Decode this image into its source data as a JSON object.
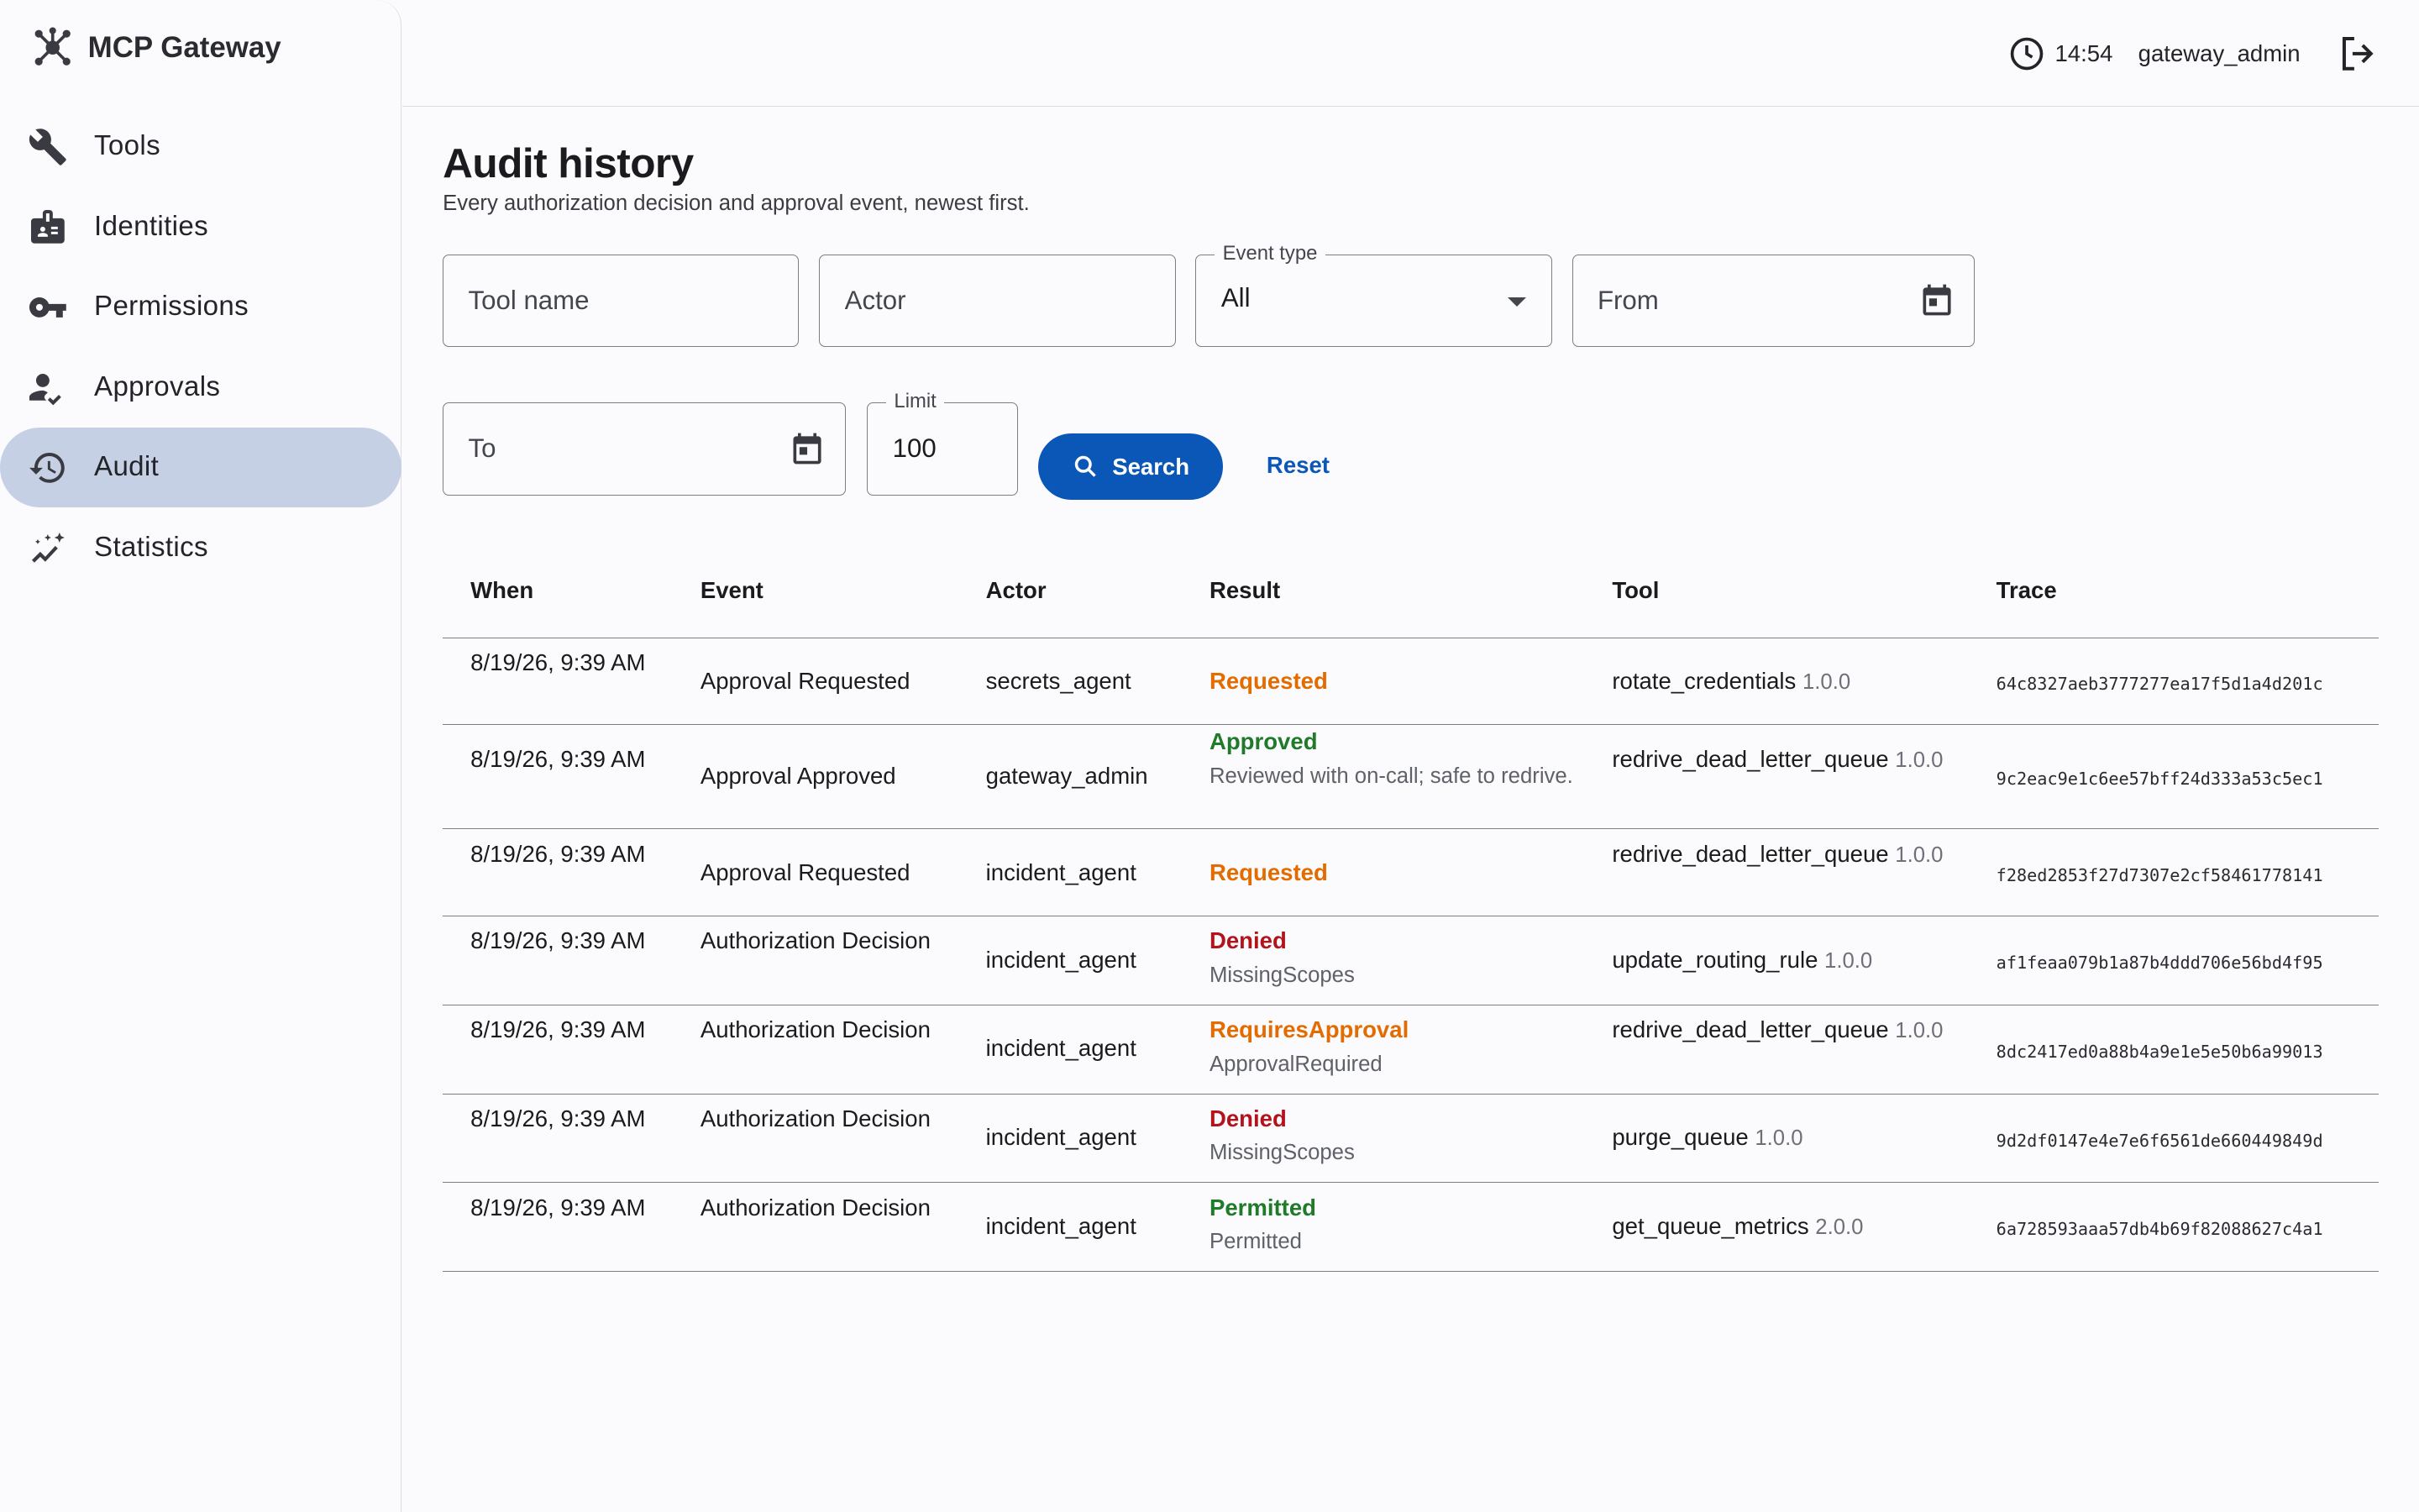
{
  "brand": {
    "name": "MCP Gateway",
    "icon": "hub-icon"
  },
  "nav": [
    {
      "label": "Tools",
      "icon": "wrench-icon",
      "active": false
    },
    {
      "label": "Identities",
      "icon": "badge-icon",
      "active": false
    },
    {
      "label": "Permissions",
      "icon": "key-icon",
      "active": false
    },
    {
      "label": "Approvals",
      "icon": "person-check-icon",
      "active": false
    },
    {
      "label": "Audit",
      "icon": "history-icon",
      "active": true
    },
    {
      "label": "Statistics",
      "icon": "chart-icon",
      "active": false
    }
  ],
  "topbar": {
    "time": "14:54",
    "user": "gateway_admin",
    "logout_icon": "logout-icon"
  },
  "page": {
    "title": "Audit history",
    "subtitle": "Every authorization decision and approval event, newest first."
  },
  "filters": {
    "tool_name_placeholder": "Tool name",
    "actor_placeholder": "Actor",
    "event_type_label": "Event type",
    "event_type_value": "All",
    "from_placeholder": "From",
    "to_placeholder": "To",
    "limit_label": "Limit",
    "limit_value": "100",
    "search_label": "Search",
    "reset_label": "Reset"
  },
  "colors": {
    "accent": "#0b57b8",
    "active_nav": "#c6d0e5",
    "requested": "#e36b00",
    "approved": "#1f7a2a",
    "denied": "#b3141c"
  },
  "table": {
    "headers": {
      "when": "When",
      "event": "Event",
      "actor": "Actor",
      "result": "Result",
      "tool": "Tool",
      "trace": "Trace"
    },
    "rows": [
      {
        "when": "8/19/26, 9:39 AM",
        "event": "Approval Requested",
        "actor": "secrets_agent",
        "status": "Requested",
        "status_color": "orange",
        "detail": "",
        "tool": "rotate_credentials",
        "version": "1.0.0",
        "trace": "64c8327aeb3777277ea17f5d1a4d201c"
      },
      {
        "when": "8/19/26, 9:39 AM",
        "event": "Approval Approved",
        "actor": "gateway_admin",
        "status": "Approved",
        "status_color": "green",
        "detail": "Reviewed with on-call; safe to redrive.",
        "tool": "redrive_dead_letter_queue",
        "version": "1.0.0",
        "trace": "9c2eac9e1c6ee57bff24d333a53c5ec1"
      },
      {
        "when": "8/19/26, 9:39 AM",
        "event": "Approval Requested",
        "actor": "incident_agent",
        "status": "Requested",
        "status_color": "orange",
        "detail": "",
        "tool": "redrive_dead_letter_queue",
        "version": "1.0.0",
        "trace": "f28ed2853f27d7307e2cf58461778141"
      },
      {
        "when": "8/19/26, 9:39 AM",
        "event": "Authorization Decision",
        "actor": "incident_agent",
        "status": "Denied",
        "status_color": "red",
        "detail": "MissingScopes",
        "tool": "update_routing_rule",
        "version": "1.0.0",
        "trace": "af1feaa079b1a87b4ddd706e56bd4f95"
      },
      {
        "when": "8/19/26, 9:39 AM",
        "event": "Authorization Decision",
        "actor": "incident_agent",
        "status": "RequiresApproval",
        "status_color": "orange",
        "detail": "ApprovalRequired",
        "tool": "redrive_dead_letter_queue",
        "version": "1.0.0",
        "trace": "8dc2417ed0a88b4a9e1e5e50b6a99013"
      },
      {
        "when": "8/19/26, 9:39 AM",
        "event": "Authorization Decision",
        "actor": "incident_agent",
        "status": "Denied",
        "status_color": "red",
        "detail": "MissingScopes",
        "tool": "purge_queue",
        "version": "1.0.0",
        "trace": "9d2df0147e4e7e6f6561de660449849d"
      },
      {
        "when": "8/19/26, 9:39 AM",
        "event": "Authorization Decision",
        "actor": "incident_agent",
        "status": "Permitted",
        "status_color": "green",
        "detail": "Permitted",
        "tool": "get_queue_metrics",
        "version": "2.0.0",
        "trace": "6a728593aaa57db4b69f82088627c4a1"
      }
    ]
  }
}
